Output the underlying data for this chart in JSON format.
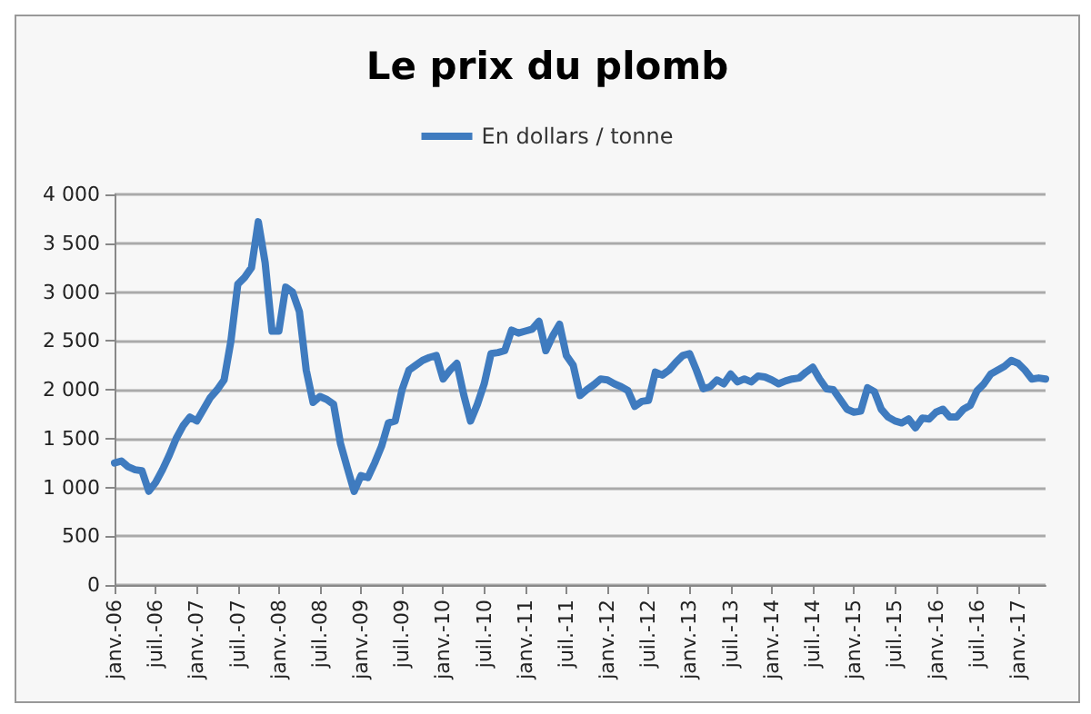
{
  "chart_data": {
    "type": "line",
    "title": "Le prix du plomb",
    "categories": [
      "janv.-06",
      null,
      null,
      null,
      null,
      null,
      "juil.-06",
      null,
      null,
      null,
      null,
      null,
      "janv.-07",
      null,
      null,
      null,
      null,
      null,
      "juil.-07",
      null,
      null,
      null,
      null,
      null,
      "janv.-08",
      null,
      null,
      null,
      null,
      null,
      "juil.-08",
      null,
      null,
      null,
      null,
      null,
      "janv.-09",
      null,
      null,
      null,
      null,
      null,
      "juil.-09",
      null,
      null,
      null,
      null,
      null,
      "janv.-10",
      null,
      null,
      null,
      null,
      null,
      "juil.-10",
      null,
      null,
      null,
      null,
      null,
      "janv.-11",
      null,
      null,
      null,
      null,
      null,
      "juil.-11",
      null,
      null,
      null,
      null,
      null,
      "janv.-12",
      null,
      null,
      null,
      null,
      null,
      "juil.-12",
      null,
      null,
      null,
      null,
      null,
      "janv.-13",
      null,
      null,
      null,
      null,
      null,
      "juil.-13",
      null,
      null,
      null,
      null,
      null,
      "janv.-14",
      null,
      null,
      null,
      null,
      null,
      "juil.-14",
      null,
      null,
      null,
      null,
      null,
      "janv.-15",
      null,
      null,
      null,
      null,
      null,
      "juil.-15",
      null,
      null,
      null,
      null,
      null,
      "janv.-16",
      null,
      null,
      null,
      null,
      null,
      "juil.-16",
      null,
      null,
      null,
      null,
      null,
      "janv.-17",
      null,
      null,
      null,
      null
    ],
    "series": [
      {
        "name": "En dollars / tonne",
        "color": "#3f7bbf",
        "values": [
          1250,
          1270,
          1210,
          1180,
          1170,
          960,
          1050,
          1180,
          1330,
          1500,
          1630,
          1720,
          1680,
          1800,
          1920,
          2000,
          2100,
          2500,
          3080,
          3150,
          3250,
          3720,
          3300,
          2600,
          2600,
          3050,
          3000,
          2800,
          2200,
          1870,
          1930,
          1900,
          1850,
          1450,
          1200,
          960,
          1120,
          1100,
          1250,
          1420,
          1660,
          1680,
          2000,
          2200,
          2250,
          2300,
          2330,
          2350,
          2110,
          2200,
          2270,
          1950,
          1680,
          1850,
          2060,
          2370,
          2380,
          2400,
          2610,
          2580,
          2600,
          2620,
          2700,
          2400,
          2550,
          2670,
          2350,
          2250,
          1940,
          2000,
          2050,
          2110,
          2100,
          2060,
          2030,
          1990,
          1830,
          1880,
          1890,
          2180,
          2150,
          2200,
          2280,
          2350,
          2370,
          2200,
          2010,
          2030,
          2100,
          2060,
          2160,
          2080,
          2110,
          2080,
          2140,
          2130,
          2100,
          2060,
          2090,
          2110,
          2120,
          2180,
          2230,
          2110,
          2010,
          2000,
          1900,
          1800,
          1770,
          1780,
          2020,
          1980,
          1800,
          1720,
          1680,
          1660,
          1700,
          1610,
          1710,
          1700,
          1770,
          1800,
          1720,
          1720,
          1800,
          1840,
          1990,
          2060,
          2160,
          2200,
          2240,
          2300,
          2270,
          2200,
          2110,
          2120,
          2110
        ]
      }
    ],
    "ylim": [
      0,
      4000
    ],
    "yticks": [
      0,
      500,
      1000,
      1500,
      2000,
      2500,
      3000,
      3500,
      {
        "value": 4000,
        "label": "4 000"
      }
    ],
    "grid": "y",
    "legend": "top",
    "marker": "none",
    "line_style": "solid"
  }
}
